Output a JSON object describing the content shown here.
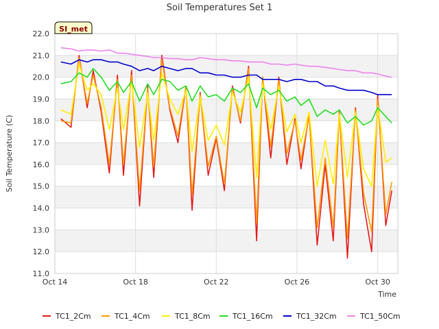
{
  "chart_data": {
    "type": "line",
    "title": "Soil Temperatures Set 1",
    "xlabel": "Time",
    "ylabel": "Soil Temperature (C)",
    "badge": "SI_met",
    "x_domain": [
      "Oct 14",
      "Oct 31"
    ],
    "x_ticks": [
      "Oct 14",
      "Oct 18",
      "Oct 22",
      "Oct 26",
      "Oct 30"
    ],
    "y_ticks": [
      "11.0",
      "12.0",
      "13.0",
      "14.0",
      "15.0",
      "16.0",
      "17.0",
      "18.0",
      "19.0",
      "20.0",
      "21.0",
      "22.0"
    ],
    "ylim": [
      11.0,
      22.0
    ],
    "grid": true,
    "legend_position": "bottom",
    "x": [
      14.3,
      14.8,
      15.2,
      15.6,
      15.9,
      16.3,
      16.7,
      17.1,
      17.4,
      17.8,
      18.2,
      18.6,
      18.9,
      19.3,
      19.7,
      20.1,
      20.5,
      20.8,
      21.2,
      21.6,
      22.0,
      22.4,
      22.8,
      23.2,
      23.6,
      24.0,
      24.3,
      24.7,
      25.1,
      25.5,
      25.9,
      26.2,
      26.6,
      27.0,
      27.4,
      27.8,
      28.1,
      28.5,
      28.9,
      29.3,
      29.7,
      30.0,
      30.4,
      30.7
    ],
    "series": [
      {
        "name": "TC1_2Cm",
        "color": "#e41a1c",
        "values": [
          18.1,
          17.7,
          21.0,
          18.6,
          20.3,
          18.4,
          15.6,
          20.1,
          15.5,
          20.3,
          14.1,
          19.6,
          15.4,
          21.0,
          18.5,
          17.0,
          19.6,
          13.9,
          19.3,
          15.5,
          17.2,
          14.8,
          19.6,
          17.9,
          20.5,
          12.5,
          20.0,
          16.3,
          20.0,
          16.0,
          18.1,
          15.8,
          18.3,
          12.3,
          16.0,
          12.5,
          18.5,
          11.7,
          18.6,
          14.2,
          12.0,
          19.2,
          13.2,
          14.8
        ]
      },
      {
        "name": "TC1_4Cm",
        "color": "#ff9900",
        "values": [
          18.0,
          17.9,
          20.9,
          18.8,
          20.1,
          18.6,
          16.0,
          19.9,
          16.0,
          20.1,
          14.8,
          19.5,
          15.9,
          20.8,
          18.6,
          17.3,
          19.6,
          14.6,
          19.2,
          15.9,
          17.3,
          15.1,
          19.5,
          18.0,
          20.4,
          13.3,
          20.0,
          16.8,
          19.9,
          16.5,
          18.0,
          16.2,
          18.2,
          13.1,
          16.3,
          13.1,
          18.4,
          12.6,
          18.5,
          14.7,
          12.9,
          19.0,
          13.7,
          15.2
        ]
      },
      {
        "name": "TC1_8Cm",
        "color": "#ffee00",
        "values": [
          18.5,
          18.3,
          20.6,
          19.4,
          19.7,
          19.2,
          17.6,
          19.5,
          17.6,
          19.8,
          16.8,
          19.3,
          17.1,
          20.2,
          19.0,
          18.3,
          19.4,
          16.6,
          19.1,
          17.1,
          17.8,
          16.9,
          19.3,
          18.4,
          20.0,
          15.4,
          19.7,
          17.6,
          19.6,
          17.5,
          18.3,
          17.0,
          18.4,
          15.0,
          17.1,
          15.1,
          18.3,
          15.4,
          18.4,
          15.8,
          15.0,
          18.7,
          16.1,
          16.3
        ]
      },
      {
        "name": "TC1_16Cm",
        "color": "#22dd22",
        "values": [
          19.7,
          19.8,
          20.2,
          20.0,
          20.4,
          20.0,
          19.4,
          19.8,
          19.3,
          19.8,
          18.9,
          19.7,
          19.2,
          19.9,
          19.8,
          19.4,
          19.6,
          18.9,
          19.6,
          19.1,
          19.2,
          18.9,
          19.5,
          19.3,
          19.7,
          18.6,
          19.5,
          19.2,
          19.4,
          18.9,
          19.1,
          18.7,
          19.0,
          18.2,
          18.5,
          18.3,
          18.5,
          17.9,
          18.2,
          17.8,
          18.0,
          18.6,
          18.2,
          17.9
        ]
      },
      {
        "name": "TC1_32Cm",
        "color": "#0000cc",
        "values": [
          20.7,
          20.6,
          20.8,
          20.7,
          20.8,
          20.8,
          20.7,
          20.7,
          20.6,
          20.5,
          20.3,
          20.4,
          20.3,
          20.5,
          20.4,
          20.3,
          20.4,
          20.4,
          20.2,
          20.2,
          20.1,
          20.1,
          20.0,
          20.0,
          20.1,
          20.1,
          19.9,
          19.9,
          19.9,
          19.8,
          19.9,
          19.9,
          19.8,
          19.8,
          19.6,
          19.6,
          19.5,
          19.4,
          19.4,
          19.4,
          19.3,
          19.2,
          19.2,
          19.2
        ]
      },
      {
        "name": "TC1_50Cm",
        "color": "#ee82ee",
        "values": [
          21.35,
          21.3,
          21.2,
          21.25,
          21.25,
          21.2,
          21.25,
          21.1,
          21.1,
          21.05,
          21.0,
          20.95,
          20.9,
          20.9,
          20.85,
          20.85,
          20.8,
          20.8,
          20.9,
          20.85,
          20.8,
          20.8,
          20.75,
          20.75,
          20.7,
          20.7,
          20.7,
          20.6,
          20.6,
          20.55,
          20.6,
          20.55,
          20.5,
          20.5,
          20.45,
          20.4,
          20.35,
          20.3,
          20.3,
          20.2,
          20.2,
          20.15,
          20.05,
          20.0
        ]
      }
    ]
  }
}
